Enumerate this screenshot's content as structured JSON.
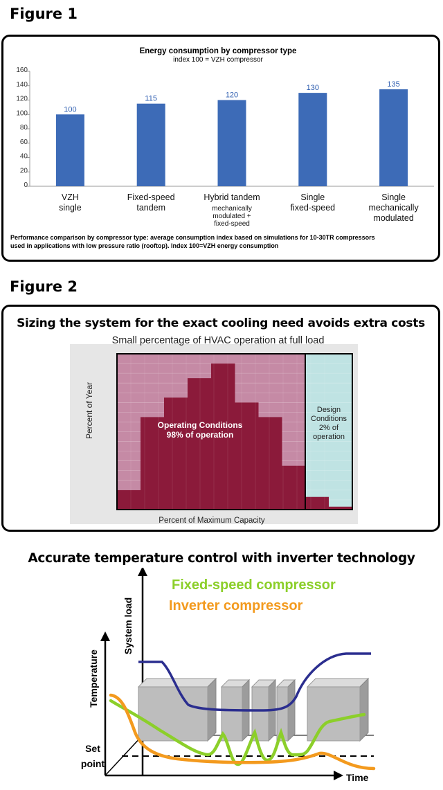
{
  "figure1": {
    "label": "Figure 1",
    "chart_data": {
      "type": "bar",
      "title": "Energy consumption by compressor type",
      "subtitle": "index 100 = VZH compressor",
      "categories": [
        [
          "VZH",
          "single"
        ],
        [
          "Fixed-speed",
          "tandem"
        ],
        [
          "Hybrid tandem"
        ],
        [
          "Single",
          "fixed-speed"
        ],
        [
          "Single",
          "mechanically",
          "modulated"
        ]
      ],
      "category_sublabel": [
        "mechanically",
        "modulated +",
        "fixed-speed"
      ],
      "values": [
        100,
        115,
        120,
        130,
        135
      ],
      "ylim": [
        0,
        160
      ],
      "yticks": [
        0,
        20,
        40,
        60,
        80,
        100,
        120,
        140,
        160
      ],
      "bar_color": "#3d6bb7",
      "label_color": "#2d5db0",
      "caption_line1": "Performance comparison by compressor type: average consumption index based on simulations for 10-30TR compressors",
      "caption_line2": "used in applications with low pressure ratio (rooftop). Index 100=VZH energy consumption"
    }
  },
  "figure2": {
    "label": "Figure 2",
    "heading": "Sizing the system for the exact cooling need avoids extra costs",
    "chart_data": {
      "type": "bar",
      "title": "Small percentage of HVAC operation at full load",
      "ylabel": "Percent of Year",
      "xlabel": "Percent of Maximum Capacity",
      "operating_values": [
        2.0,
        9.5,
        11.5,
        13.5,
        15.0,
        11.0,
        9.5,
        4.5
      ],
      "design_values": [
        1.3,
        0.3
      ],
      "ymax": 16.0,
      "operating_label": [
        "Operating Conditions",
        "98% of operation"
      ],
      "design_label": [
        "Design",
        "Conditions",
        "2% of",
        "operation"
      ],
      "operating_color": "#8b1a3a",
      "operating_bg": "#c58aa5",
      "design_bg": "#bfe3e3"
    }
  },
  "figure3": {
    "heading": "Accurate temperature control with inverter technology",
    "chart_data": {
      "type": "line",
      "xlabel": "Time",
      "ylabel": "Temperature",
      "y2label": "System load",
      "setpoint_label": [
        "Set",
        "point"
      ],
      "series": [
        {
          "name": "Fixed-speed compressor",
          "color": "#8ccf2a"
        },
        {
          "name": "Inverter compressor",
          "color": "#f39a1e"
        }
      ],
      "load_color": "#2b2e8f"
    }
  }
}
